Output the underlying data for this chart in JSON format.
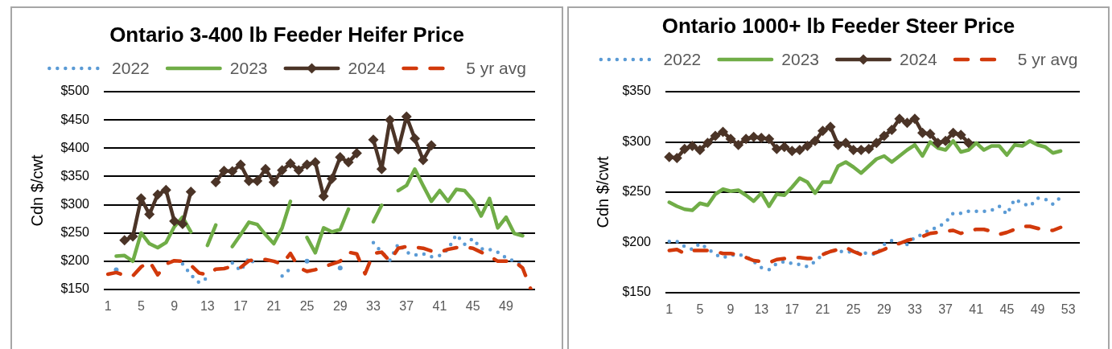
{
  "chart_data": [
    {
      "type": "line",
      "title": "Ontario 3-400 lb Feeder Heifer Price",
      "ylabel": "Cdn $/cwt",
      "legend": "top",
      "grid": "y",
      "categories": [
        "1",
        null,
        null,
        null,
        "5",
        null,
        null,
        null,
        "9",
        null,
        null,
        null,
        "13",
        null,
        null,
        null,
        "17",
        null,
        null,
        null,
        "21",
        null,
        null,
        null,
        "25",
        null,
        null,
        null,
        "29",
        null,
        null,
        null,
        "33",
        null,
        null,
        null,
        "37",
        null,
        null,
        null,
        "41",
        null,
        null,
        null,
        "45",
        null,
        null,
        null,
        "49",
        null,
        null,
        null
      ],
      "ylim": [
        150,
        500
      ],
      "yticks": [
        {
          "value": 150,
          "label": "$150"
        },
        {
          "value": 200,
          "label": "$200"
        },
        {
          "value": 250,
          "label": "$250"
        },
        {
          "value": 300,
          "label": "$300"
        },
        {
          "value": 350,
          "label": "$350"
        },
        {
          "value": 400,
          "label": "$400"
        },
        {
          "value": 450,
          "label": "$450"
        },
        {
          "value": 500,
          "label": "$500"
        }
      ],
      "series": [
        {
          "name": "2022",
          "color": "#5b9bd5",
          "line_style": "dotted",
          "marker": "none",
          "values": [
            null,
            185,
            null,
            null,
            null,
            null,
            null,
            null,
            null,
            195,
            176,
            162,
            171,
            null,
            null,
            197,
            183,
            206,
            191,
            null,
            null,
            174,
            187,
            null,
            200,
            null,
            null,
            null,
            188,
            null,
            null,
            null,
            233,
            216,
            202,
            231,
            216,
            211,
            213,
            208,
            210,
            221,
            247,
            230,
            240,
            222,
            221,
            216,
            206,
            200,
            193,
            null
          ]
        },
        {
          "name": "2023",
          "color": "#70ad47",
          "line_style": "solid",
          "marker": "none",
          "values": [
            null,
            209,
            210,
            200,
            250,
            231,
            224,
            233,
            261,
            278,
            252,
            null,
            228,
            264,
            null,
            226,
            247,
            269,
            265,
            247,
            231,
            259,
            306,
            null,
            242,
            215,
            259,
            252,
            256,
            292,
            null,
            null,
            270,
            299,
            null,
            325,
            334,
            363,
            334,
            306,
            325,
            306,
            327,
            325,
            308,
            280,
            311,
            259,
            278,
            249,
            245,
            null
          ]
        },
        {
          "name": "2024",
          "color": "#4b3427",
          "line_style": "solid",
          "marker": "diamond",
          "values": [
            null,
            null,
            237,
            244,
            311,
            283,
            318,
            326,
            271,
            266,
            323,
            null,
            null,
            340,
            360,
            359,
            371,
            342,
            342,
            363,
            340,
            361,
            373,
            361,
            371,
            375,
            315,
            346,
            384,
            375,
            391,
            null,
            415,
            363,
            450,
            398,
            456,
            417,
            379,
            405,
            null,
            null,
            null,
            null,
            null,
            null,
            null,
            null,
            null,
            null,
            null,
            null
          ]
        },
        {
          "name": "5 yr avg",
          "color": "#d2390b",
          "line_style": "dashed",
          "marker": "none",
          "values": [
            177,
            180,
            175,
            174,
            190,
            200,
            176,
            195,
            201,
            200,
            193,
            179,
            176,
            186,
            187,
            191,
            189,
            201,
            203,
            203,
            200,
            195,
            214,
            189,
            182,
            185,
            190,
            195,
            200,
            216,
            213,
            178,
            214,
            216,
            200,
            223,
            226,
            225,
            223,
            218,
            216,
            221,
            224,
            225,
            223,
            216,
            209,
            200,
            200,
            200,
            188,
            150
          ]
        }
      ]
    },
    {
      "type": "line",
      "title": "Ontario 1000+ lb Feeder Steer Price",
      "ylabel": "Cdn $/cwt",
      "legend": "top",
      "grid": "y",
      "categories": [
        "1",
        null,
        null,
        null,
        "5",
        null,
        null,
        null,
        "9",
        null,
        null,
        null,
        "13",
        null,
        null,
        null,
        "17",
        null,
        null,
        null,
        "21",
        null,
        null,
        null,
        "25",
        null,
        null,
        null,
        "29",
        null,
        null,
        null,
        "33",
        null,
        null,
        null,
        "37",
        null,
        null,
        null,
        "41",
        null,
        null,
        null,
        "45",
        null,
        null,
        null,
        "49",
        null,
        null,
        null,
        "53",
        null
      ],
      "ylim": [
        150,
        350
      ],
      "yticks": [
        {
          "value": 150,
          "label": "$150"
        },
        {
          "value": 200,
          "label": "$200"
        },
        {
          "value": 250,
          "label": "$250"
        },
        {
          "value": 300,
          "label": "$300"
        },
        {
          "value": 350,
          "label": "$350"
        }
      ],
      "series": [
        {
          "name": "2022",
          "color": "#5b9bd5",
          "line_style": "dotted",
          "marker": "none",
          "values": [
            201,
            201,
            196,
            193,
            199,
            194,
            188,
            185,
            187,
            188,
            186,
            181,
            175,
            173,
            179,
            181,
            179,
            178,
            176,
            181,
            188,
            192,
            191,
            191,
            190,
            190,
            189,
            188,
            198,
            202,
            199,
            198,
            205,
            208,
            213,
            215,
            220,
            229,
            229,
            231,
            231,
            231,
            232,
            236,
            228,
            243,
            239,
            236,
            244,
            243,
            238,
            245,
            null,
            null
          ]
        },
        {
          "name": "2023",
          "color": "#70ad47",
          "line_style": "solid",
          "marker": "none",
          "values": [
            240,
            236,
            233,
            232,
            239,
            237,
            248,
            253,
            251,
            252,
            247,
            241,
            249,
            236,
            248,
            247,
            255,
            264,
            260,
            249,
            260,
            260,
            276,
            280,
            275,
            269,
            276,
            283,
            286,
            280,
            286,
            292,
            297,
            286,
            300,
            294,
            292,
            301,
            290,
            292,
            299,
            292,
            296,
            296,
            287,
            297,
            296,
            301,
            297,
            295,
            289,
            291,
            null,
            null
          ]
        },
        {
          "name": "2024",
          "color": "#4b3427",
          "line_style": "solid",
          "marker": "diamond",
          "values": [
            285,
            284,
            293,
            296,
            292,
            299,
            306,
            310,
            303,
            297,
            303,
            305,
            304,
            303,
            293,
            295,
            291,
            292,
            296,
            301,
            311,
            315,
            297,
            299,
            292,
            292,
            293,
            299,
            306,
            312,
            323,
            319,
            323,
            309,
            308,
            299,
            301,
            309,
            307,
            299,
            null,
            null,
            null,
            null,
            null,
            null,
            null,
            null,
            null,
            null,
            null,
            null,
            null,
            null
          ]
        },
        {
          "name": "5 yr avg",
          "color": "#d2390b",
          "line_style": "dashed",
          "marker": "none",
          "values": [
            192,
            193,
            189,
            192,
            192,
            192,
            191,
            189,
            189,
            188,
            185,
            182,
            181,
            180,
            183,
            184,
            185,
            185,
            184,
            184,
            188,
            191,
            193,
            195,
            191,
            188,
            188,
            190,
            193,
            197,
            199,
            202,
            204,
            206,
            209,
            210,
            211,
            212,
            209,
            212,
            213,
            213,
            211,
            208,
            210,
            213,
            216,
            216,
            214,
            212,
            212,
            215,
            null,
            null
          ]
        }
      ]
    }
  ]
}
